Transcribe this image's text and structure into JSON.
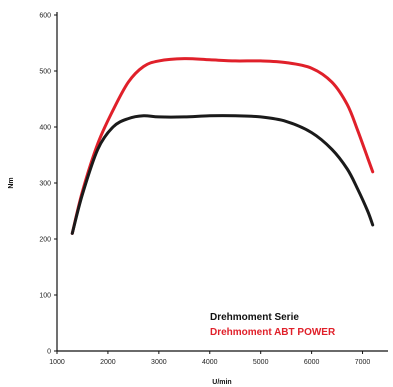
{
  "chart_data": {
    "type": "line",
    "title": "",
    "xlabel": "U/min",
    "ylabel": "Nm",
    "xlim": [
      1000,
      7500
    ],
    "ylim": [
      0,
      600
    ],
    "xticks": [
      1000,
      2000,
      3000,
      4000,
      5000,
      6000,
      7000
    ],
    "yticks": [
      0,
      100,
      200,
      300,
      400,
      500,
      600
    ],
    "xtick_labels": [
      "1000",
      "2000",
      "3000",
      "4000",
      "5000",
      "6000",
      "7000"
    ],
    "ytick_labels": [
      "0",
      "100",
      "200",
      "300",
      "400",
      "500",
      "600"
    ],
    "grid": false,
    "legend_position": "bottom-right",
    "series": [
      {
        "name": "Drehmoment Serie",
        "color": "#1a1a1a",
        "x": [
          1300,
          1500,
          1800,
          2100,
          2400,
          2700,
          3000,
          3500,
          4000,
          4500,
          5000,
          5500,
          6000,
          6400,
          6700,
          6900,
          7100,
          7200
        ],
        "y": [
          210,
          280,
          360,
          400,
          415,
          420,
          418,
          418,
          420,
          420,
          418,
          410,
          390,
          360,
          325,
          290,
          250,
          225
        ]
      },
      {
        "name": "Drehmoment ABT POWER",
        "color": "#e0202a",
        "x": [
          1300,
          1500,
          1800,
          2100,
          2400,
          2700,
          3000,
          3500,
          4000,
          4500,
          5000,
          5500,
          6000,
          6400,
          6700,
          6900,
          7100,
          7200
        ],
        "y": [
          210,
          285,
          370,
          430,
          480,
          508,
          518,
          522,
          520,
          518,
          518,
          515,
          505,
          480,
          440,
          395,
          345,
          320
        ]
      }
    ]
  }
}
